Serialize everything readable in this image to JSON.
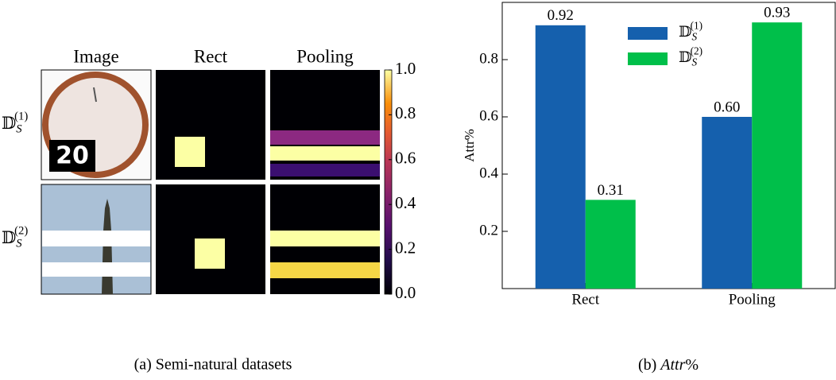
{
  "chart_data": [
    {
      "type": "image-grid",
      "column_titles": [
        "Image",
        "Rect",
        "Pooling"
      ],
      "row_labels": [
        {
          "base": "𝔻",
          "sub": "S",
          "sup": "(1)"
        },
        {
          "base": "𝔻",
          "sub": "S",
          "sup": "(2)"
        }
      ],
      "image_text": "20",
      "colorbar_lim": [
        0,
        1
      ],
      "colorbar_ticks": [
        {
          "value": 0,
          "label": "0.0"
        },
        0.2,
        0.4,
        0.6,
        0.8,
        {
          "value": 1,
          "label": "1.0"
        }
      ],
      "caption": "(a) Semi-natural datasets"
    },
    {
      "type": "bar",
      "categories": [
        "Rect",
        "Pooling"
      ],
      "series": [
        {
          "name": {
            "base": "𝔻",
            "sub": "S",
            "sup": "(1)"
          },
          "color": "#1560ad",
          "values": [
            0.92,
            0.6
          ],
          "value_labels": [
            "0.92",
            "0.60"
          ]
        },
        {
          "name": {
            "base": "𝔻",
            "sub": "S",
            "sup": "(2)"
          },
          "color": "#00bf4a",
          "values": [
            0.31,
            0.93
          ],
          "value_labels": [
            "0.31",
            "0.93"
          ]
        }
      ],
      "ylabel": "Attr%",
      "ylim": [
        0,
        1
      ],
      "yticks": [
        0.2,
        0.4,
        0.6,
        0.8
      ],
      "legend": "upper center",
      "caption": {
        "prefix": "(b) ",
        "italic": "Attr",
        "suffix": "%"
      }
    }
  ]
}
